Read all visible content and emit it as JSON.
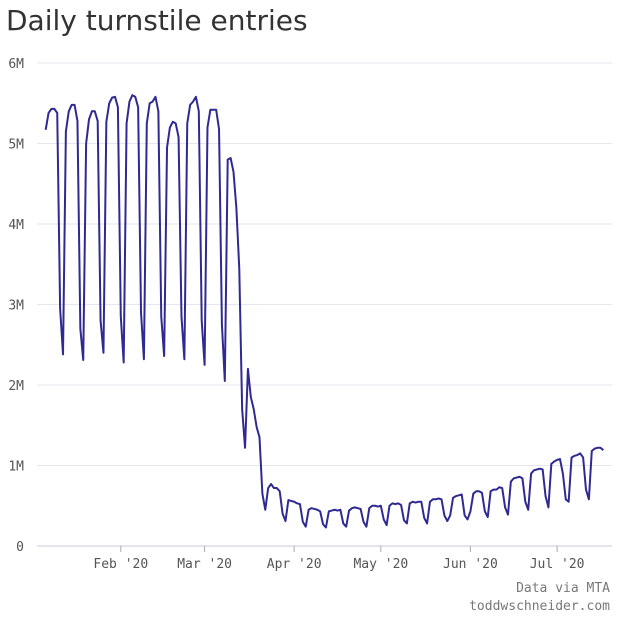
{
  "chart_data": {
    "type": "line",
    "title": "Daily turnstile entries",
    "source": "Data via MTA",
    "site": "toddwschneider.com",
    "color": "#2f2a91",
    "grid": true,
    "x": [
      6,
      7,
      8,
      9,
      10,
      11,
      12,
      13,
      14,
      15,
      16,
      17,
      18,
      19,
      20,
      21,
      22,
      23,
      24,
      25,
      26,
      27,
      28,
      29,
      30,
      31,
      32,
      33,
      34,
      35,
      36,
      37,
      38,
      39,
      40,
      41,
      42,
      43,
      44,
      45,
      46,
      47,
      48,
      49,
      50,
      51,
      52,
      53,
      54,
      55,
      56,
      57,
      58,
      59,
      60,
      61,
      62,
      63,
      64,
      65,
      66,
      67,
      68,
      69,
      70,
      71,
      72,
      73,
      74,
      75,
      76,
      77,
      78,
      79,
      80,
      81,
      82,
      83,
      84,
      85,
      86,
      87,
      88,
      89,
      90,
      91,
      92,
      93,
      94,
      95,
      96,
      97,
      98,
      99,
      100,
      101,
      102,
      103,
      104,
      105,
      106,
      107,
      108,
      109,
      110,
      111,
      112,
      113,
      114,
      115,
      116,
      117,
      118,
      119,
      120,
      121,
      122,
      123,
      124,
      125,
      126,
      127,
      128,
      129,
      130,
      131,
      132,
      133,
      134,
      135,
      136,
      137,
      138,
      139,
      140,
      141,
      142,
      143,
      144,
      145,
      146,
      147,
      148,
      149,
      150,
      151,
      152,
      153,
      154,
      155,
      156,
      157,
      158,
      159,
      160,
      161,
      162,
      163,
      164,
      165,
      166,
      167,
      168,
      169,
      170,
      171,
      172,
      173,
      174,
      175,
      176,
      177,
      178,
      179,
      180,
      181,
      182,
      183,
      184,
      185,
      186,
      187,
      188,
      189,
      190,
      191,
      192,
      193,
      194,
      195,
      196,
      197,
      198,
      199
    ],
    "values": [
      5170000,
      5380000,
      5430000,
      5430000,
      5380000,
      2950000,
      2380000,
      5150000,
      5400000,
      5480000,
      5480000,
      5280000,
      2700000,
      2310000,
      5000000,
      5300000,
      5400000,
      5400000,
      5280000,
      2800000,
      2400000,
      5270000,
      5500000,
      5570000,
      5580000,
      5450000,
      2850000,
      2280000,
      5250000,
      5520000,
      5600000,
      5580000,
      5450000,
      2900000,
      2320000,
      5250000,
      5500000,
      5520000,
      5580000,
      5400000,
      2850000,
      2360000,
      4950000,
      5200000,
      5270000,
      5250000,
      5080000,
      2850000,
      2320000,
      5250000,
      5480000,
      5520000,
      5580000,
      5400000,
      2800000,
      2250000,
      5200000,
      5420000,
      5420000,
      5420000,
      5180000,
      2750000,
      2050000,
      4800000,
      4820000,
      4650000,
      4200000,
      3450000,
      1700000,
      1220000,
      2200000,
      1850000,
      1700000,
      1480000,
      1350000,
      650000,
      450000,
      720000,
      770000,
      720000,
      720000,
      680000,
      400000,
      310000,
      570000,
      560000,
      550000,
      530000,
      520000,
      300000,
      240000,
      450000,
      470000,
      460000,
      450000,
      430000,
      270000,
      230000,
      430000,
      440000,
      450000,
      440000,
      450000,
      280000,
      240000,
      440000,
      470000,
      480000,
      470000,
      460000,
      300000,
      240000,
      470000,
      500000,
      500000,
      490000,
      500000,
      330000,
      260000,
      500000,
      530000,
      520000,
      530000,
      510000,
      320000,
      280000,
      530000,
      550000,
      540000,
      550000,
      550000,
      350000,
      280000,
      550000,
      580000,
      580000,
      590000,
      580000,
      380000,
      310000,
      380000,
      600000,
      620000,
      630000,
      640000,
      380000,
      330000,
      430000,
      650000,
      680000,
      680000,
      660000,
      430000,
      360000,
      680000,
      700000,
      700000,
      730000,
      720000,
      480000,
      390000,
      800000,
      840000,
      850000,
      860000,
      840000,
      550000,
      450000,
      900000,
      940000,
      950000,
      960000,
      950000,
      620000,
      480000,
      1020000,
      1050000,
      1070000,
      1080000,
      900000,
      580000,
      550000,
      1100000,
      1120000,
      1130000,
      1150000,
      1100000,
      700000,
      580000,
      1180000,
      1210000,
      1220000,
      1220000,
      1190000
    ],
    "xlim": [
      3,
      202
    ],
    "xticks": [
      {
        "value": 32,
        "label": "Feb '20"
      },
      {
        "value": 61,
        "label": "Mar '20"
      },
      {
        "value": 92,
        "label": "Apr '20"
      },
      {
        "value": 122,
        "label": "May '20"
      },
      {
        "value": 153,
        "label": "Jun '20"
      },
      {
        "value": 183,
        "label": "Jul '20"
      }
    ],
    "ylim": [
      0,
      6000000
    ],
    "yticks": [
      0,
      {
        "value": 1000000,
        "label": "1M"
      },
      {
        "value": 2000000,
        "label": "2M"
      },
      {
        "value": 3000000,
        "label": "3M"
      },
      {
        "value": 4000000,
        "label": "4M"
      },
      {
        "value": 5000000,
        "label": "5M"
      },
      {
        "value": 6000000,
        "label": "6M"
      }
    ]
  }
}
